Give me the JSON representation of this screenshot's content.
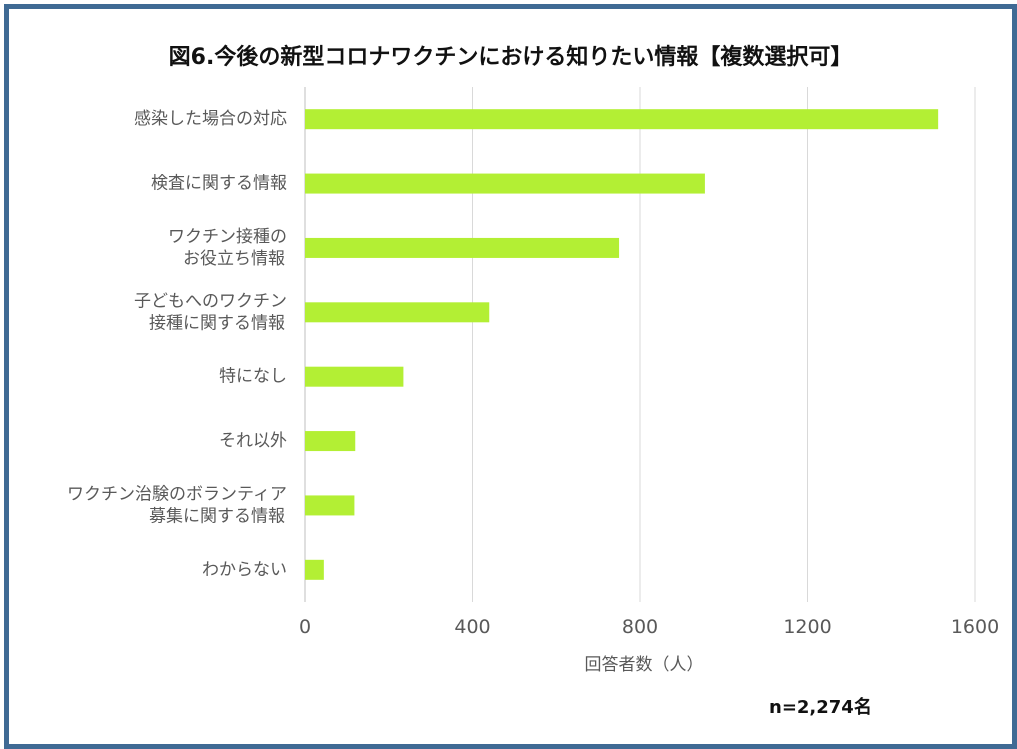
{
  "chart_data": {
    "type": "bar",
    "orientation": "horizontal",
    "title": "図6.今後の新型コロナワクチンにおける知りたい情報【複数選択可】",
    "xlabel": "回答者数（人）",
    "note": "n=2,274名",
    "categories": [
      [
        "感染した場合の対応"
      ],
      [
        "検査に関する情報"
      ],
      [
        "ワクチン接種の",
        "お役立ち情報"
      ],
      [
        "子どもへのワクチン",
        "接種に関する情報"
      ],
      [
        "特になし"
      ],
      [
        "それ以外"
      ],
      [
        "ワクチン治験のボランティア",
        "募集に関する情報"
      ],
      [
        "わからない"
      ]
    ],
    "values": [
      1512,
      955,
      750,
      440,
      235,
      120,
      118,
      45
    ],
    "xlim": [
      0,
      1600
    ],
    "ticks": [
      "0",
      "400",
      "800",
      "1200",
      "1600"
    ],
    "grid": true,
    "bar_color": "#b3ef34",
    "grid_color": "#d9d9d9"
  }
}
